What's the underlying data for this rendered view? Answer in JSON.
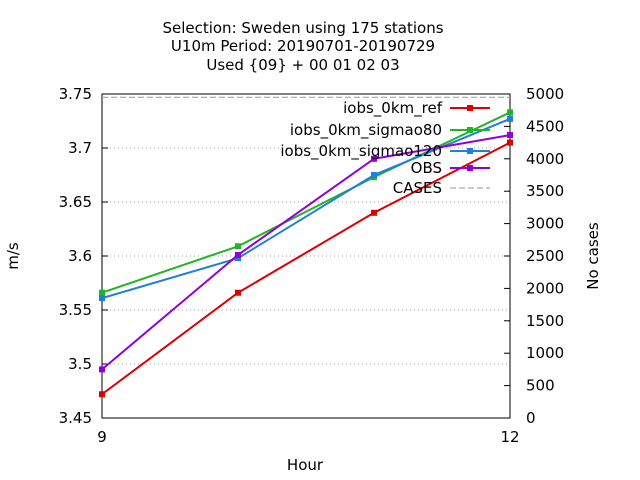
{
  "chart_data": {
    "type": "line",
    "title_lines": [
      "Selection: Sweden using   175 stations",
      "U10m   Period: 20190701-20190729",
      "Used {09} + 00 01 02 03"
    ],
    "xlabel": "Hour",
    "ylabel": "m/s",
    "y2label": "No cases",
    "x_ticks": [
      "9",
      "12"
    ],
    "xlim": [
      9,
      12
    ],
    "ylim": [
      3.45,
      3.75
    ],
    "y_ticks": [
      "3.45",
      "3.5",
      "3.55",
      "3.6",
      "3.65",
      "3.7",
      "3.75"
    ],
    "y2lim": [
      0,
      5000
    ],
    "y2_ticks": [
      "0",
      "500",
      "1000",
      "1500",
      "2000",
      "2500",
      "3000",
      "3500",
      "4000",
      "4500",
      "5000"
    ],
    "grid": true,
    "legend_position": "top-right",
    "x": [
      9,
      10,
      11,
      12
    ],
    "series": [
      {
        "name": "iobs_0km_ref",
        "axis": "y",
        "color": "#dd0000",
        "values": [
          3.472,
          3.566,
          3.64,
          3.705
        ]
      },
      {
        "name": "iobs_0km_sigmao80",
        "axis": "y",
        "color": "#22b422",
        "values": [
          3.566,
          3.609,
          3.673,
          3.733
        ]
      },
      {
        "name": "iobs_0km_sigmao120",
        "axis": "y",
        "color": "#1e7fe0",
        "values": [
          3.561,
          3.598,
          3.675,
          3.727
        ]
      },
      {
        "name": "OBS",
        "axis": "y",
        "color": "#9400d3",
        "values": [
          3.495,
          3.601,
          3.69,
          3.712
        ]
      },
      {
        "name": "CASES",
        "axis": "y2",
        "color": "#999999",
        "dashed": true,
        "values": [
          4950,
          4950,
          4950,
          4950
        ]
      }
    ]
  }
}
